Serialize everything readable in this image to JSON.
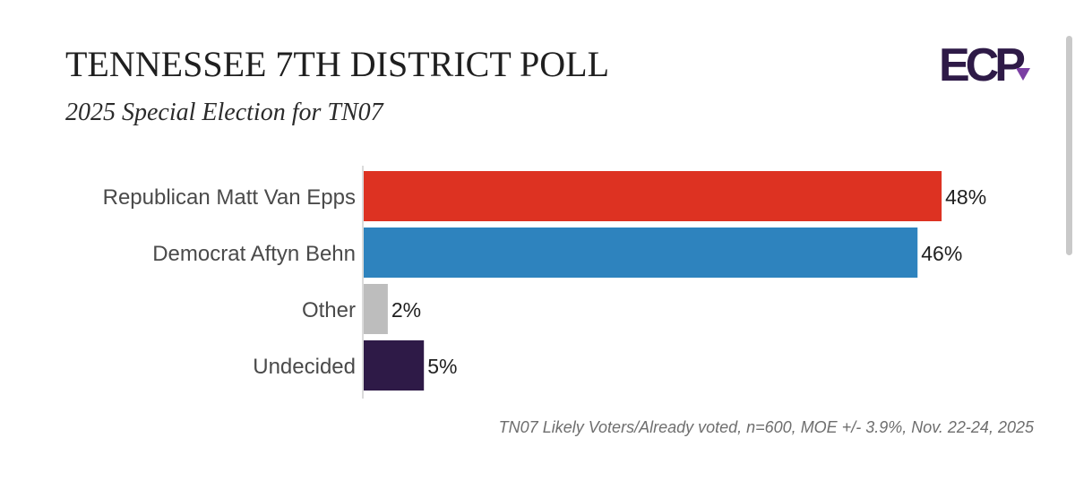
{
  "header": {
    "title": "TENNESSEE 7TH DISTRICT POLL",
    "subtitle": "2025 Special Election for TN07"
  },
  "logo": {
    "text": "ECP",
    "color": "#2e1a47",
    "accent_color": "#7b3fa3"
  },
  "chart_data": {
    "type": "bar",
    "orientation": "horizontal",
    "title": "TENNESSEE 7TH DISTRICT POLL",
    "subtitle": "2025 Special Election for TN07",
    "categories": [
      "Republican Matt Van Epps",
      "Democrat Aftyn Behn",
      "Other",
      "Undecided"
    ],
    "values": [
      48,
      46,
      2,
      5
    ],
    "value_labels": [
      "48%",
      "46%",
      "2%",
      "5%"
    ],
    "colors": [
      "#dd3222",
      "#2e83be",
      "#bdbdbd",
      "#2e1a47"
    ],
    "xlim": [
      0,
      50
    ],
    "grid": false,
    "legend": "none"
  },
  "footnote": "TN07 Likely Voters/Already voted, n=600, MOE +/- 3.9%, Nov. 22-24, 2025"
}
